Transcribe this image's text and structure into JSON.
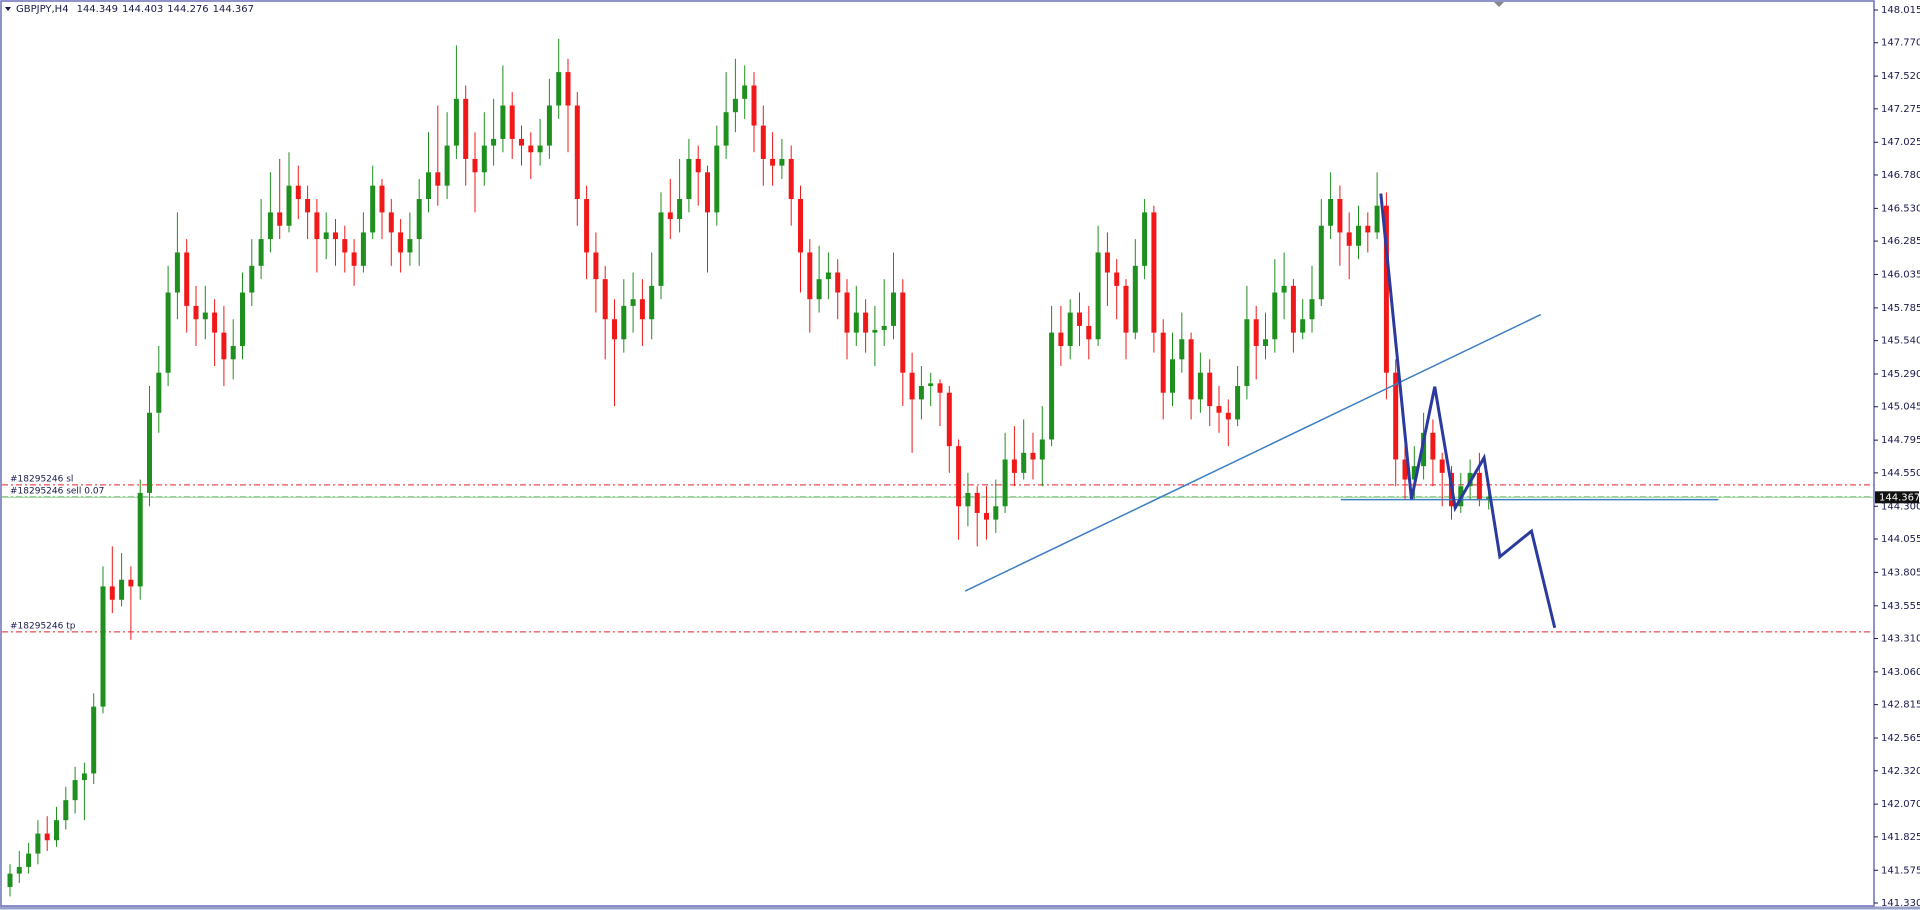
{
  "chart_data": {
    "type": "candlestick",
    "symbol": "GBPJPY,H4",
    "header_values": [
      144.349,
      144.403,
      144.276,
      144.367
    ],
    "current_price": 144.367,
    "up_color": "#1f8f1f",
    "down_color": "#f01818",
    "ylim": [
      141.33,
      148.015
    ],
    "yticks": [
      148.015,
      {
        "value": 147.77,
        "label": "147.770"
      },
      {
        "value": 147.52,
        "label": "147.520"
      },
      147.275,
      147.025,
      {
        "value": 146.78,
        "label": "146.780"
      },
      {
        "value": 146.53,
        "label": "146.530"
      },
      146.285,
      146.035,
      145.785,
      {
        "value": 145.54,
        "label": "145.540"
      },
      {
        "value": 145.29,
        "label": "145.290"
      },
      145.045,
      144.795,
      {
        "value": 144.55,
        "label": "144.550"
      },
      {
        "value": 144.3,
        "label": "144.300"
      },
      144.055,
      143.805,
      143.555,
      {
        "value": 143.31,
        "label": "143.310"
      },
      {
        "value": 143.06,
        "label": "143.060"
      },
      142.815,
      142.565,
      {
        "value": 142.32,
        "label": "142.320"
      },
      {
        "value": 142.07,
        "label": "142.070"
      },
      141.825,
      141.575,
      {
        "value": 141.33,
        "label": "141.330"
      }
    ],
    "order_lines": [
      {
        "label": "#18295246 sl",
        "price": 144.46,
        "color": "#e8202a"
      },
      {
        "label": "#18295246 sell 0.07",
        "price": 144.37,
        "color": "#3a9a3a"
      },
      {
        "label": "#18295246 tp",
        "price": 143.36,
        "color": "#e8202a"
      }
    ],
    "trendline": {
      "x": [
        102.7,
        164.6
      ],
      "y": [
        143.665,
        145.735
      ],
      "color": "#3d7fc4"
    },
    "level_line": {
      "x": [
        143.1,
        183.7
      ],
      "y": [
        144.35,
        144.35
      ],
      "color": "#3d7fc4"
    },
    "zigzag": {
      "x": [
        147.4,
        150.7,
        153.2,
        155.4,
        158.5,
        160.2,
        163.6,
        166.1
      ],
      "y": [
        146.641,
        144.352,
        145.195,
        144.288,
        144.663,
        143.922,
        144.114,
        143.39
      ],
      "color": "#2b3a9e"
    },
    "ohlc": [
      [
        141.45,
        141.62,
        141.38,
        141.55
      ],
      [
        141.55,
        141.72,
        141.48,
        141.6
      ],
      [
        141.6,
        141.78,
        141.55,
        141.7
      ],
      [
        141.7,
        141.95,
        141.62,
        141.85
      ],
      [
        141.85,
        141.98,
        141.72,
        141.8
      ],
      [
        141.8,
        142.05,
        141.75,
        141.95
      ],
      [
        141.95,
        142.2,
        141.88,
        142.1
      ],
      [
        142.1,
        142.35,
        142.0,
        142.25
      ],
      [
        142.25,
        142.38,
        141.95,
        142.3
      ],
      [
        142.3,
        142.9,
        142.22,
        142.8
      ],
      [
        142.8,
        143.85,
        142.75,
        143.7
      ],
      [
        143.7,
        144.0,
        143.5,
        143.6
      ],
      [
        143.6,
        143.95,
        143.55,
        143.75
      ],
      [
        143.75,
        143.85,
        143.3,
        143.7
      ],
      [
        143.7,
        144.5,
        143.6,
        144.4
      ],
      [
        144.4,
        145.2,
        144.3,
        145.0
      ],
      [
        145.0,
        145.5,
        144.85,
        145.3
      ],
      [
        145.3,
        146.1,
        145.2,
        145.9
      ],
      [
        145.9,
        146.5,
        145.7,
        146.2
      ],
      [
        146.2,
        146.3,
        145.6,
        145.8
      ],
      [
        145.8,
        145.95,
        145.5,
        145.7
      ],
      [
        145.7,
        145.95,
        145.55,
        145.75
      ],
      [
        145.75,
        145.85,
        145.35,
        145.6
      ],
      [
        145.6,
        145.8,
        145.2,
        145.4
      ],
      [
        145.4,
        145.7,
        145.25,
        145.5
      ],
      [
        145.5,
        146.05,
        145.4,
        145.9
      ],
      [
        145.9,
        146.3,
        145.8,
        146.1
      ],
      [
        146.1,
        146.6,
        146.0,
        146.3
      ],
      [
        146.3,
        146.8,
        146.2,
        146.5
      ],
      [
        146.5,
        146.9,
        146.3,
        146.4
      ],
      [
        146.4,
        146.95,
        146.35,
        146.7
      ],
      [
        146.7,
        146.85,
        146.45,
        146.6
      ],
      [
        146.6,
        146.7,
        146.3,
        146.5
      ],
      [
        146.5,
        146.6,
        146.05,
        146.3
      ],
      [
        146.3,
        146.5,
        146.15,
        146.35
      ],
      [
        146.35,
        146.45,
        146.1,
        146.3
      ],
      [
        146.3,
        146.4,
        146.05,
        146.2
      ],
      [
        146.2,
        146.3,
        145.95,
        146.1
      ],
      [
        146.1,
        146.5,
        146.05,
        146.35
      ],
      [
        146.35,
        146.85,
        146.3,
        146.7
      ],
      [
        146.7,
        146.75,
        146.3,
        146.5
      ],
      [
        146.5,
        146.6,
        146.1,
        146.35
      ],
      [
        146.35,
        146.45,
        146.05,
        146.2
      ],
      [
        146.2,
        146.5,
        146.1,
        146.3
      ],
      [
        146.3,
        146.75,
        146.1,
        146.6
      ],
      [
        146.6,
        147.1,
        146.5,
        146.8
      ],
      [
        146.8,
        147.3,
        146.55,
        146.7
      ],
      [
        146.7,
        147.25,
        146.6,
        147.0
      ],
      [
        147.0,
        147.75,
        146.9,
        147.35
      ],
      [
        147.35,
        147.45,
        146.7,
        146.9
      ],
      [
        146.9,
        147.1,
        146.5,
        146.8
      ],
      [
        146.8,
        147.25,
        146.7,
        147.0
      ],
      [
        147.0,
        147.35,
        146.85,
        147.05
      ],
      [
        147.05,
        147.6,
        146.95,
        147.3
      ],
      [
        147.3,
        147.4,
        146.9,
        147.05
      ],
      [
        147.05,
        147.15,
        146.85,
        147.0
      ],
      [
        147.0,
        147.1,
        146.75,
        146.95
      ],
      [
        146.95,
        147.2,
        146.85,
        147.0
      ],
      [
        147.0,
        147.5,
        146.9,
        147.3
      ],
      [
        147.3,
        147.8,
        147.2,
        147.55
      ],
      [
        147.55,
        147.65,
        146.95,
        147.3
      ],
      [
        147.3,
        147.4,
        146.4,
        146.6
      ],
      [
        146.6,
        146.7,
        146.0,
        146.2
      ],
      [
        146.2,
        146.35,
        145.75,
        146.0
      ],
      [
        146.0,
        146.1,
        145.4,
        145.7
      ],
      [
        145.7,
        145.85,
        145.05,
        145.55
      ],
      [
        145.55,
        146.0,
        145.45,
        145.8
      ],
      [
        145.8,
        146.05,
        145.6,
        145.85
      ],
      [
        145.85,
        146.0,
        145.5,
        145.7
      ],
      [
        145.7,
        146.2,
        145.55,
        145.95
      ],
      [
        145.95,
        146.65,
        145.85,
        146.5
      ],
      [
        146.5,
        146.75,
        146.3,
        146.45
      ],
      [
        146.45,
        146.9,
        146.35,
        146.6
      ],
      [
        146.6,
        147.05,
        146.5,
        146.9
      ],
      [
        146.9,
        147.0,
        146.55,
        146.8
      ],
      [
        146.8,
        146.85,
        146.05,
        146.5
      ],
      [
        146.5,
        147.15,
        146.4,
        147.0
      ],
      [
        147.0,
        147.55,
        146.9,
        147.25
      ],
      [
        147.25,
        147.65,
        147.1,
        147.35
      ],
      [
        147.35,
        147.6,
        147.2,
        147.45
      ],
      [
        147.45,
        147.55,
        146.95,
        147.15
      ],
      [
        147.15,
        147.3,
        146.7,
        146.9
      ],
      [
        146.9,
        147.1,
        146.7,
        146.85
      ],
      [
        146.85,
        147.05,
        146.75,
        146.9
      ],
      [
        146.9,
        147.0,
        146.4,
        146.6
      ],
      [
        146.6,
        146.7,
        145.9,
        146.2
      ],
      [
        146.2,
        146.3,
        145.6,
        145.85
      ],
      [
        145.85,
        146.25,
        145.75,
        146.0
      ],
      [
        146.0,
        146.2,
        145.85,
        146.05
      ],
      [
        146.05,
        146.15,
        145.7,
        145.9
      ],
      [
        145.9,
        146.0,
        145.4,
        145.6
      ],
      [
        145.6,
        145.95,
        145.5,
        145.75
      ],
      [
        145.75,
        145.85,
        145.45,
        145.6
      ],
      [
        145.6,
        145.8,
        145.35,
        145.62
      ],
      [
        145.62,
        146.0,
        145.5,
        145.65
      ],
      [
        145.65,
        146.2,
        145.55,
        145.9
      ],
      [
        145.9,
        146.0,
        145.05,
        145.3
      ],
      [
        145.3,
        145.45,
        144.7,
        145.1
      ],
      [
        145.1,
        145.35,
        144.95,
        145.2
      ],
      [
        145.2,
        145.3,
        145.05,
        145.22
      ],
      [
        145.22,
        145.25,
        144.9,
        145.15
      ],
      [
        145.15,
        145.2,
        144.55,
        144.75
      ],
      [
        144.75,
        144.8,
        144.05,
        144.3
      ],
      [
        144.3,
        144.55,
        144.15,
        144.4
      ],
      [
        144.4,
        144.45,
        144.0,
        144.25
      ],
      [
        144.25,
        144.45,
        144.05,
        144.2
      ],
      [
        144.2,
        144.5,
        144.1,
        144.3
      ],
      [
        144.3,
        144.85,
        144.25,
        144.65
      ],
      [
        144.65,
        144.9,
        144.45,
        144.55
      ],
      [
        144.55,
        144.95,
        144.5,
        144.7
      ],
      [
        144.7,
        144.85,
        144.5,
        144.65
      ],
      [
        144.65,
        145.05,
        144.45,
        144.8
      ],
      [
        144.8,
        145.8,
        144.75,
        145.6
      ],
      [
        145.6,
        145.8,
        145.35,
        145.5
      ],
      [
        145.5,
        145.85,
        145.4,
        145.75
      ],
      [
        145.75,
        145.9,
        145.5,
        145.65
      ],
      [
        145.65,
        145.8,
        145.4,
        145.55
      ],
      [
        145.55,
        146.4,
        145.5,
        146.2
      ],
      [
        146.2,
        146.35,
        145.8,
        146.05
      ],
      [
        146.05,
        146.15,
        145.7,
        145.95
      ],
      [
        145.95,
        146.0,
        145.4,
        145.6
      ],
      [
        145.6,
        146.3,
        145.55,
        146.1
      ],
      [
        146.1,
        146.6,
        146.0,
        146.5
      ],
      [
        146.5,
        146.55,
        145.45,
        145.6
      ],
      [
        145.6,
        145.7,
        144.95,
        145.15
      ],
      [
        145.15,
        145.6,
        145.05,
        145.4
      ],
      [
        145.4,
        145.75,
        145.3,
        145.55
      ],
      [
        145.55,
        145.6,
        144.95,
        145.1
      ],
      [
        145.1,
        145.45,
        145.0,
        145.3
      ],
      [
        145.3,
        145.4,
        144.9,
        145.05
      ],
      [
        145.05,
        145.2,
        144.85,
        145.0
      ],
      [
        145.0,
        145.1,
        144.75,
        144.95
      ],
      [
        144.95,
        145.35,
        144.9,
        145.2
      ],
      [
        145.2,
        145.95,
        145.1,
        145.7
      ],
      [
        145.7,
        145.8,
        145.25,
        145.5
      ],
      [
        145.5,
        145.75,
        145.4,
        145.55
      ],
      [
        145.55,
        146.15,
        145.45,
        145.9
      ],
      [
        145.9,
        146.2,
        145.7,
        145.95
      ],
      [
        145.95,
        146.0,
        145.45,
        145.6
      ],
      [
        145.6,
        145.85,
        145.55,
        145.7
      ],
      [
        145.7,
        146.1,
        145.6,
        145.85
      ],
      [
        145.85,
        146.6,
        145.8,
        146.4
      ],
      [
        146.4,
        146.8,
        146.3,
        146.6
      ],
      [
        146.6,
        146.7,
        146.1,
        146.35
      ],
      [
        146.35,
        146.5,
        146.0,
        146.25
      ],
      [
        146.25,
        146.55,
        146.15,
        146.4
      ],
      [
        146.4,
        146.5,
        146.2,
        146.35
      ],
      [
        146.35,
        146.8,
        146.3,
        146.55
      ],
      [
        146.55,
        146.65,
        145.1,
        145.3
      ],
      [
        145.3,
        145.4,
        144.45,
        144.65
      ],
      [
        144.65,
        144.8,
        144.35,
        144.5
      ],
      [
        144.5,
        144.75,
        144.35,
        144.6
      ],
      [
        144.6,
        145.0,
        144.5,
        144.85
      ],
      [
        144.85,
        144.95,
        144.45,
        144.65
      ],
      [
        144.65,
        144.7,
        144.3,
        144.55
      ],
      [
        144.55,
        144.6,
        144.2,
        144.3
      ],
      [
        144.3,
        144.55,
        144.25,
        144.45
      ],
      [
        144.45,
        144.65,
        144.35,
        144.55
      ],
      [
        144.55,
        144.7,
        144.3,
        144.349
      ],
      [
        144.349,
        144.403,
        144.276,
        144.367
      ]
    ]
  }
}
